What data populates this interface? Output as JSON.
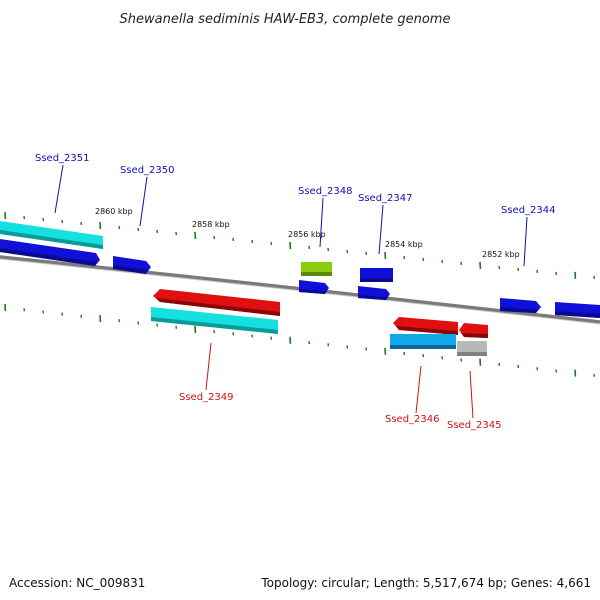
{
  "title": "Shewanella sediminis HAW-EB3, complete genome",
  "footer": {
    "accession": "Accession: NC_009831",
    "summary": "Topology: circular; Length: 5,517,674 bp; Genes: 4,661"
  },
  "kbp_labels": [
    "2860 kbp",
    "2858 kbp",
    "2856 kbp",
    "2854 kbp",
    "2852 kbp"
  ],
  "colors": {
    "backbone": "#7a7a7a",
    "tick": "#1a7a1a",
    "blue": "#1010d8",
    "cyan": "#14e0e0",
    "red": "#e01010",
    "lightblue": "#10a8e8",
    "lime": "#8ccc10",
    "gray": "#b8b8b8",
    "label_top": "#1010b0",
    "label_bottom": "#d01010"
  },
  "genes": [
    {
      "label": "Ssed_2351",
      "strand": "top"
    },
    {
      "label": "Ssed_2350",
      "strand": "top"
    },
    {
      "label": "Ssed_2348",
      "strand": "top"
    },
    {
      "label": "Ssed_2347",
      "strand": "top"
    },
    {
      "label": "Ssed_2344",
      "strand": "top"
    },
    {
      "label": "Ssed_2349",
      "strand": "bottom"
    },
    {
      "label": "Ssed_2346",
      "strand": "bottom"
    },
    {
      "label": "Ssed_2345",
      "strand": "bottom"
    }
  ]
}
